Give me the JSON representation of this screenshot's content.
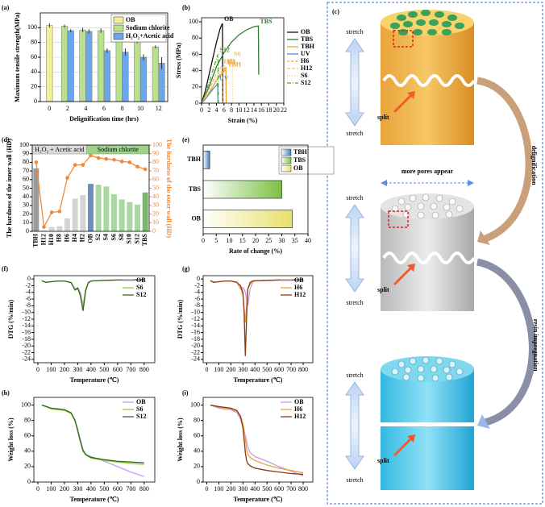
{
  "chart_data": [
    {
      "type": "bar",
      "label": "(a)",
      "xlabel": "Delignification time (hrs)",
      "ylabel": "Maximum tensile strength(MPa)",
      "categories": [
        "0",
        "2",
        "4",
        "6",
        "8",
        "10",
        "12"
      ],
      "series": [
        {
          "name": "OB",
          "color": "#f3ee9a",
          "values": [
            103,
            null,
            null,
            null,
            null,
            null,
            null
          ],
          "errors": [
            3,
            null,
            null,
            null,
            null,
            null,
            null
          ]
        },
        {
          "name": "Sodium chlorite",
          "color": "#b9e08c",
          "values": [
            null,
            102,
            97,
            96,
            92,
            82,
            74
          ],
          "errors": [
            null,
            2,
            3,
            3,
            4,
            3,
            2
          ]
        },
        {
          "name": "H₂O₂+Acetic acid",
          "color": "#6aa6e8",
          "values": [
            null,
            96,
            95,
            69,
            67,
            60,
            52
          ],
          "errors": [
            null,
            2,
            3,
            3,
            5,
            4,
            8
          ]
        }
      ],
      "ylim": [
        0,
        120
      ],
      "yticks": [
        0,
        20,
        40,
        60,
        80,
        100
      ],
      "grid": true,
      "legend": "top-right"
    },
    {
      "type": "line",
      "label": "(b)",
      "xlabel": "Strain (%)",
      "ylabel": "Stress (MPa)",
      "xlim": [
        0,
        22
      ],
      "xticks": [
        0,
        2,
        4,
        6,
        8,
        10,
        12,
        14,
        16,
        18,
        20,
        22
      ],
      "ylim": [
        0,
        105
      ],
      "yticks": [
        0,
        20,
        40,
        60,
        80,
        100
      ],
      "legend": "right",
      "series_labels": true,
      "series": [
        {
          "name": "OB",
          "color": "#111111",
          "x": [
            0,
            1,
            2,
            3,
            4,
            5,
            5.6,
            5.7
          ],
          "values": [
            0,
            15,
            35,
            55,
            75,
            92,
            98,
            0
          ]
        },
        {
          "name": "TBS",
          "color": "#2e7d32",
          "x": [
            0,
            2,
            4,
            6,
            8,
            10,
            12,
            14,
            15.2,
            15.3
          ],
          "values": [
            0,
            20,
            45,
            62,
            75,
            84,
            90,
            94,
            95,
            35
          ]
        },
        {
          "name": "TBH",
          "color": "#f5a623",
          "x": [
            0,
            1,
            2,
            3,
            4,
            5,
            6,
            6.5,
            6.6
          ],
          "values": [
            0,
            5,
            12,
            20,
            28,
            34,
            39,
            42,
            0
          ]
        },
        {
          "name": "UV",
          "color": "#4a90d9",
          "x": [
            0,
            1,
            2,
            3,
            4,
            4.3,
            4.4
          ],
          "values": [
            0,
            5,
            11,
            17,
            22,
            25,
            0
          ]
        },
        {
          "name": "H6",
          "color": "#f0a030",
          "dash": "3 2",
          "x": [
            0,
            1,
            2,
            3,
            4,
            5,
            6,
            6.5,
            6.6
          ],
          "values": [
            0,
            6,
            13,
            20,
            28,
            36,
            42,
            45,
            0
          ]
        },
        {
          "name": "H12",
          "color": "#e8c070",
          "dash": "4 2",
          "x": [
            0,
            1,
            2,
            3,
            4,
            5,
            5.5,
            5.6
          ],
          "values": [
            0,
            8,
            17,
            27,
            36,
            43,
            46,
            0
          ]
        },
        {
          "name": "S6",
          "color": "#f2c84b",
          "dash": "1 2",
          "x": [
            0,
            1,
            2,
            3,
            4,
            5,
            6,
            7,
            8,
            8.2,
            8.3
          ],
          "values": [
            0,
            8,
            16,
            24,
            32,
            39,
            45,
            50,
            54,
            55,
            0
          ]
        },
        {
          "name": "S12",
          "color": "#5aa02c",
          "dash": "5 2 1 2",
          "x": [
            0,
            1,
            2,
            3,
            4,
            4.4,
            4.5
          ],
          "values": [
            0,
            12,
            25,
            40,
            55,
            60,
            0
          ]
        }
      ]
    },
    {
      "type": "bar_line",
      "label": "(d)",
      "ylabel": "The hardness of the inner wall (HD)",
      "y2label": "The hardness of the outer wall (HD)",
      "group_labels": [
        "H₂O₂ + Acetic acid",
        "Sodium chlorite"
      ],
      "categories": [
        "TBH",
        "H12",
        "H10",
        "H8",
        "H6",
        "H4",
        "H2",
        "OB",
        "S2",
        "S4",
        "S6",
        "S8",
        "S10",
        "S12",
        "TBS"
      ],
      "series": [
        {
          "colors": [
            "#9b9b9b",
            "#d4d4d4",
            "#d4d4d4",
            "#d4d4d4",
            "#d4d4d4",
            "#d4d4d4",
            "#d4d4d4",
            "#6c8ebf",
            "#a8d8a0",
            "#a8d8a0",
            "#a8d8a0",
            "#a8d8a0",
            "#a8d8a0",
            "#a8d8a0",
            "#79b86a"
          ],
          "values": [
            73,
            1,
            5,
            6,
            15,
            38,
            42,
            55,
            54,
            52,
            43,
            37,
            34,
            31,
            45
          ]
        },
        {
          "color": "#f0883a",
          "axis": "y2",
          "values": [
            80,
            5,
            22,
            23,
            62,
            77,
            77,
            88,
            85,
            84,
            83,
            81,
            80,
            75,
            72
          ]
        }
      ],
      "ylim": [
        0,
        100
      ],
      "yticks": [
        0,
        10,
        20,
        30,
        40,
        50,
        60,
        70,
        80,
        90,
        100
      ],
      "y2lim": [
        0,
        100
      ],
      "y2ticks": [
        0,
        10,
        20,
        30,
        40,
        50,
        60,
        70,
        80,
        90,
        100
      ]
    },
    {
      "type": "hbar",
      "label": "(e)",
      "xlabel": "Rate of change (%)",
      "categories": [
        "TBH",
        "TBS",
        "OB"
      ],
      "values": [
        2.5,
        30,
        34
      ],
      "colors": [
        "#3f7fbf",
        "#7ac142",
        "#e8df6a"
      ],
      "xlim": [
        0,
        40
      ],
      "xticks": [
        0,
        5,
        10,
        15,
        20,
        25,
        30,
        35,
        40
      ],
      "legend": "top-right"
    },
    {
      "type": "line",
      "label": "(f)",
      "xlabel": "Temperature (℃)",
      "ylabel": "DTG (%/min)",
      "legend": "top-right",
      "xlim": [
        -30,
        880
      ],
      "xticks": [
        0,
        100,
        200,
        300,
        400,
        500,
        600,
        700,
        800
      ],
      "ylim": [
        -25,
        1
      ],
      "yticks": [
        0,
        -2,
        -4,
        -6,
        -8,
        -10,
        -12,
        -14,
        -16,
        -18,
        -20,
        -22,
        -24
      ],
      "x": [
        30,
        60,
        100,
        150,
        200,
        250,
        280,
        300,
        320,
        340,
        360,
        380,
        400,
        500,
        600,
        700,
        800
      ],
      "series": [
        {
          "name": "OB",
          "color": "#c89af0",
          "values": [
            -0.5,
            -1,
            -0.8,
            -0.6,
            -0.6,
            -1,
            -3,
            -2.5,
            -4,
            -8,
            -3,
            -1,
            -0.6,
            -0.4,
            -0.3,
            -0.3,
            -0.2
          ]
        },
        {
          "name": "S6",
          "color": "#9acd32",
          "values": [
            -0.5,
            -1,
            -0.8,
            -0.6,
            -0.6,
            -1.1,
            -3.2,
            -2.6,
            -4.5,
            -9,
            -3.2,
            -1,
            -0.6,
            -0.4,
            -0.3,
            -0.3,
            -0.2
          ]
        },
        {
          "name": "S12",
          "color": "#2e6b1e",
          "values": [
            -0.5,
            -1,
            -0.8,
            -0.6,
            -0.6,
            -1.1,
            -3.3,
            -2.8,
            -5,
            -9.5,
            -3.5,
            -1.1,
            -0.6,
            -0.4,
            -0.3,
            -0.3,
            -0.2
          ]
        }
      ]
    },
    {
      "type": "line",
      "label": "(g)",
      "xlabel": "Temperature (℃)",
      "ylabel": "DTG (%/min)",
      "legend": "top-right",
      "xlim": [
        -30,
        880
      ],
      "xticks": [
        0,
        100,
        200,
        300,
        400,
        500,
        600,
        700,
        800
      ],
      "ylim": [
        -25,
        1
      ],
      "yticks": [
        0,
        -2,
        -4,
        -6,
        -8,
        -10,
        -12,
        -14,
        -16,
        -18,
        -20,
        -22,
        -24
      ],
      "x": [
        30,
        60,
        100,
        150,
        200,
        250,
        280,
        300,
        310,
        320,
        330,
        340,
        360,
        380,
        400,
        500,
        600,
        700,
        800
      ],
      "series": [
        {
          "name": "OB",
          "color": "#c89af0",
          "values": [
            -0.5,
            -1,
            -0.8,
            -0.6,
            -0.6,
            -1,
            -3,
            -2.5,
            -3,
            -4,
            -6,
            -8,
            -3,
            -1,
            -0.6,
            -0.4,
            -0.3,
            -0.3,
            -0.2
          ]
        },
        {
          "name": "H6",
          "color": "#e8a33d",
          "values": [
            -0.5,
            -1,
            -0.8,
            -0.6,
            -0.6,
            -1,
            -2.5,
            -5,
            -9,
            -13,
            -8,
            -3,
            -1.5,
            -0.8,
            -0.5,
            -0.4,
            -0.3,
            -0.3,
            -0.2
          ]
        },
        {
          "name": "H12",
          "color": "#8b3a0f",
          "values": [
            -0.5,
            -1,
            -0.8,
            -0.6,
            -0.6,
            -1,
            -2,
            -4,
            -10,
            -23,
            -12,
            -3,
            -1,
            -0.6,
            -0.5,
            -0.4,
            -0.3,
            -0.3,
            -0.2
          ]
        }
      ]
    },
    {
      "type": "line",
      "label": "(h)",
      "xlabel": "Temperature (℃)",
      "ylabel": "Weight loss (%)",
      "legend": "top-right",
      "xlim": [
        -30,
        880
      ],
      "xticks": [
        0,
        100,
        200,
        300,
        400,
        500,
        600,
        700,
        800
      ],
      "ylim": [
        0,
        110
      ],
      "yticks": [
        0,
        20,
        40,
        60,
        80,
        100
      ],
      "x": [
        30,
        100,
        150,
        200,
        250,
        280,
        300,
        320,
        340,
        360,
        380,
        400,
        500,
        600,
        700,
        800
      ],
      "series": [
        {
          "name": "OB",
          "color": "#c89af0",
          "values": [
            100,
            96,
            95,
            94,
            90,
            80,
            68,
            55,
            42,
            36,
            34,
            33,
            27,
            20,
            13,
            7
          ]
        },
        {
          "name": "S6",
          "color": "#9acd32",
          "values": [
            100,
            95,
            94,
            93,
            89,
            79,
            66,
            52,
            40,
            35,
            33,
            31,
            28,
            26,
            24,
            23
          ]
        },
        {
          "name": "S12",
          "color": "#2e6b1e",
          "values": [
            100,
            96,
            95,
            94,
            90,
            80,
            67,
            53,
            41,
            36,
            34,
            32,
            29,
            27,
            26,
            25
          ]
        }
      ]
    },
    {
      "type": "line",
      "label": "(i)",
      "xlabel": "Temperature (℃)",
      "ylabel": "Weight loss (%)",
      "legend": "top-right",
      "xlim": [
        -30,
        880
      ],
      "xticks": [
        0,
        100,
        200,
        300,
        400,
        500,
        600,
        700,
        800
      ],
      "ylim": [
        0,
        110
      ],
      "yticks": [
        0,
        20,
        40,
        60,
        80,
        100
      ],
      "x": [
        30,
        100,
        150,
        200,
        250,
        280,
        300,
        310,
        320,
        330,
        340,
        360,
        400,
        500,
        600,
        700,
        800
      ],
      "series": [
        {
          "name": "OB",
          "color": "#c89af0",
          "values": [
            100,
            96,
            95,
            94,
            90,
            82,
            72,
            66,
            60,
            54,
            46,
            38,
            33,
            27,
            20,
            14,
            8
          ]
        },
        {
          "name": "H6",
          "color": "#e8a33d",
          "values": [
            100,
            97,
            96,
            95,
            92,
            86,
            76,
            68,
            55,
            42,
            36,
            32,
            28,
            22,
            18,
            15,
            12
          ]
        },
        {
          "name": "H12",
          "color": "#8b3a0f",
          "values": [
            100,
            98,
            97,
            96,
            93,
            85,
            70,
            55,
            38,
            28,
            24,
            21,
            18,
            15,
            13,
            11,
            10
          ]
        }
      ]
    }
  ],
  "diagram": {
    "label": "(c)",
    "stages": [
      {
        "stretch_top": "stretch",
        "stretch_bottom": "stretch",
        "split": "split"
      },
      {
        "stretch_top": "stretch",
        "stretch_bottom": "stretch",
        "split": "split"
      },
      {
        "stretch_top": "stretch",
        "stretch_bottom": "stretch",
        "split": "split"
      }
    ],
    "pores": "more pores appear",
    "steps": [
      "delignification",
      "resin impregnation"
    ]
  }
}
